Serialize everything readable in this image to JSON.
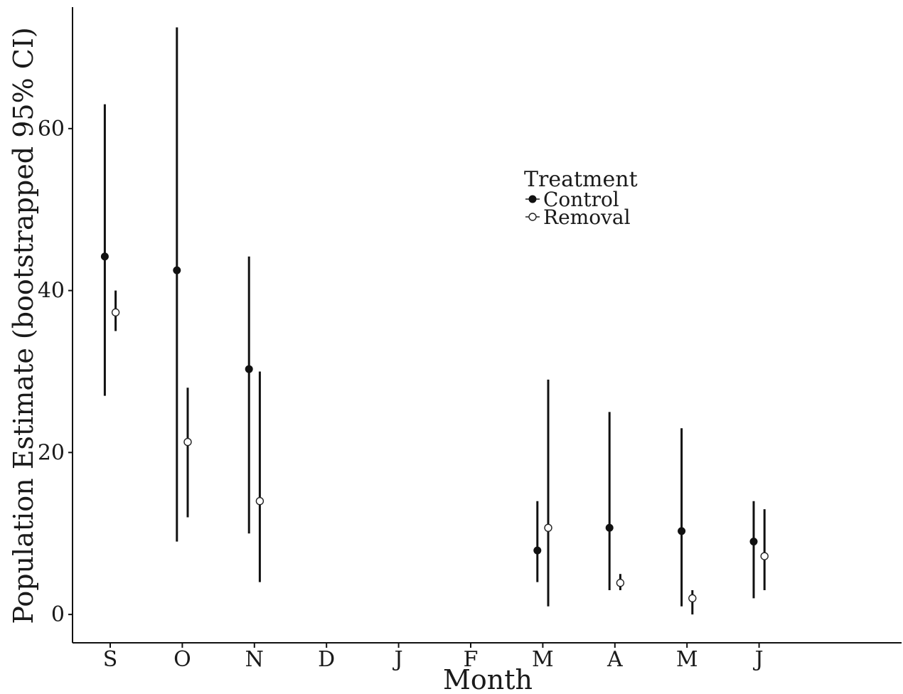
{
  "chart_data": {
    "type": "scatter",
    "subtype": "point-with-error-bars",
    "xlabel": "Month",
    "ylabel": "Population Estimate (bootstrapped 95% CI)",
    "categories": [
      "S",
      "O",
      "N",
      "D",
      "J",
      "F",
      "M",
      "A",
      "M",
      "J"
    ],
    "y_ticks": [
      0,
      20,
      40,
      60
    ],
    "ylim": [
      -3.5,
      75
    ],
    "grid": false,
    "legend": {
      "title": "Treatment",
      "placement": "inside-upper-center"
    },
    "series": [
      {
        "name": "Control",
        "marker": "filled-circle",
        "color": "#111111",
        "points": [
          {
            "category_index": 0,
            "estimate": 44.2,
            "ci_low": 27,
            "ci_high": 63
          },
          {
            "category_index": 1,
            "estimate": 42.5,
            "ci_low": 9,
            "ci_high": 72.5
          },
          {
            "category_index": 2,
            "estimate": 30.3,
            "ci_low": 10,
            "ci_high": 44.2
          },
          {
            "category_index": 6,
            "estimate": 7.9,
            "ci_low": 4,
            "ci_high": 14
          },
          {
            "category_index": 7,
            "estimate": 10.7,
            "ci_low": 3,
            "ci_high": 25
          },
          {
            "category_index": 8,
            "estimate": 10.3,
            "ci_low": 1,
            "ci_high": 23
          },
          {
            "category_index": 9,
            "estimate": 9,
            "ci_low": 2,
            "ci_high": 14
          }
        ]
      },
      {
        "name": "Removal",
        "marker": "open-circle",
        "color": "#111111",
        "points": [
          {
            "category_index": 0,
            "estimate": 37.3,
            "ci_low": 35,
            "ci_high": 40
          },
          {
            "category_index": 1,
            "estimate": 21.3,
            "ci_low": 12,
            "ci_high": 28
          },
          {
            "category_index": 2,
            "estimate": 14,
            "ci_low": 4,
            "ci_high": 30
          },
          {
            "category_index": 6,
            "estimate": 10.7,
            "ci_low": 1,
            "ci_high": 29
          },
          {
            "category_index": 7,
            "estimate": 3.9,
            "ci_low": 3,
            "ci_high": 5
          },
          {
            "category_index": 8,
            "estimate": 2,
            "ci_low": 0,
            "ci_high": 3
          },
          {
            "category_index": 9,
            "estimate": 7.2,
            "ci_low": 3,
            "ci_high": 13
          }
        ]
      }
    ]
  }
}
